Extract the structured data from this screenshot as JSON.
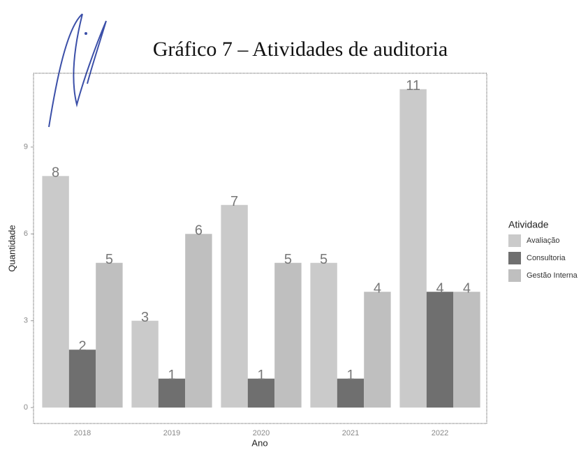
{
  "chart_data": {
    "type": "bar",
    "title": "Gráfico 7 – Atividades de auditoria",
    "x_label": "Ano",
    "y_label": "Quantidade",
    "legend_title": "Atividade",
    "categories": [
      "2018",
      "2019",
      "2020",
      "2021",
      "2022"
    ],
    "series": [
      {
        "name": "Avaliação",
        "color": "#cacaca",
        "values": [
          8,
          3,
          7,
          5,
          11
        ]
      },
      {
        "name": "Consultoria",
        "color": "#6f6f6f",
        "values": [
          2,
          1,
          1,
          1,
          4
        ]
      },
      {
        "name": "Gestão Interna",
        "color": "#bfbfbf",
        "values": [
          5,
          6,
          5,
          4,
          4
        ]
      }
    ],
    "ylim": [
      -0.55,
      11.55
    ],
    "yticks": [
      0,
      3,
      6,
      9
    ],
    "legend": "right"
  }
}
